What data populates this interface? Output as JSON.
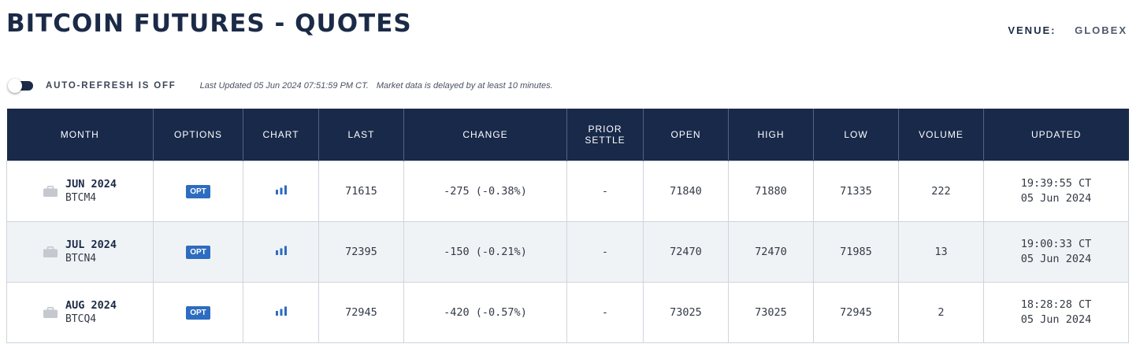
{
  "page": {
    "title": "BITCOIN FUTURES - QUOTES",
    "venue_label": "VENUE:",
    "venue_value": "GLOBEX"
  },
  "refresh": {
    "label": "AUTO-REFRESH IS OFF",
    "last_updated": "Last Updated 05 Jun 2024 07:51:59 PM CT.",
    "delay_note": "Market data is delayed by at least 10 minutes."
  },
  "colors": {
    "header_bg": "#18294a",
    "opt_button": "#2d6cc0",
    "negative_change": "#d93a3a",
    "alt_row": "#f0f3f6"
  },
  "table": {
    "headers": {
      "month": "MONTH",
      "options": "OPTIONS",
      "chart": "CHART",
      "last": "LAST",
      "change": "CHANGE",
      "prior_settle_1": "PRIOR",
      "prior_settle_2": "SETTLE",
      "open": "OPEN",
      "high": "HIGH",
      "low": "LOW",
      "volume": "VOLUME",
      "updated": "UPDATED"
    },
    "rows": [
      {
        "month": "JUN 2024",
        "code": "BTCM4",
        "options": "OPT",
        "chart_icon": "bar-chart-icon",
        "last": "71615",
        "change": "-275 (-0.38%)",
        "prior_settle": "-",
        "open": "71840",
        "high": "71880",
        "low": "71335",
        "volume": "222",
        "updated_time": "19:39:55 CT",
        "updated_date": "05 Jun 2024"
      },
      {
        "month": "JUL 2024",
        "code": "BTCN4",
        "options": "OPT",
        "chart_icon": "bar-chart-icon",
        "last": "72395",
        "change": "-150 (-0.21%)",
        "prior_settle": "-",
        "open": "72470",
        "high": "72470",
        "low": "71985",
        "volume": "13",
        "updated_time": "19:00:33 CT",
        "updated_date": "05 Jun 2024"
      },
      {
        "month": "AUG 2024",
        "code": "BTCQ4",
        "options": "OPT",
        "chart_icon": "bar-chart-icon",
        "last": "72945",
        "change": "-420 (-0.57%)",
        "prior_settle": "-",
        "open": "73025",
        "high": "73025",
        "low": "72945",
        "volume": "2",
        "updated_time": "18:28:28 CT",
        "updated_date": "05 Jun 2024"
      }
    ]
  }
}
